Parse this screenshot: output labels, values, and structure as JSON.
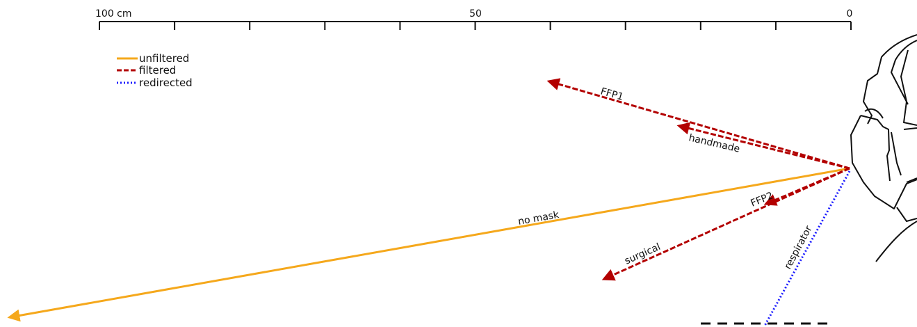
{
  "scale": {
    "unit": "cm",
    "labels": [
      {
        "value": 100,
        "text": "100 cm"
      },
      {
        "value": 50,
        "text": "50"
      },
      {
        "value": 0,
        "text": "0"
      }
    ],
    "major_ticks": [
      100,
      90,
      80,
      70,
      60,
      50,
      40,
      30,
      20,
      10,
      0
    ]
  },
  "legend": {
    "items": [
      {
        "label": "unfiltered",
        "color": "#f5a81c",
        "style": "solid"
      },
      {
        "label": "filtered",
        "color": "#b30000",
        "style": "dashed"
      },
      {
        "label": "redirected",
        "color": "#1a1aff",
        "style": "dotted"
      }
    ]
  },
  "flows": [
    {
      "label": "no mask",
      "kind": "unfiltered",
      "distance_cm": 112
    },
    {
      "label": "FFP1",
      "kind": "filtered",
      "distance_cm": 40
    },
    {
      "label": "handmade",
      "kind": "filtered",
      "distance_cm": 23
    },
    {
      "label": "FFP2",
      "kind": "filtered",
      "distance_cm": 11
    },
    {
      "label": "surgical",
      "kind": "filtered",
      "distance_cm": 33
    },
    {
      "label": "respirator",
      "kind": "redirected",
      "distance_cm": null
    }
  ],
  "illustration": "head-with-face-mask-icon"
}
